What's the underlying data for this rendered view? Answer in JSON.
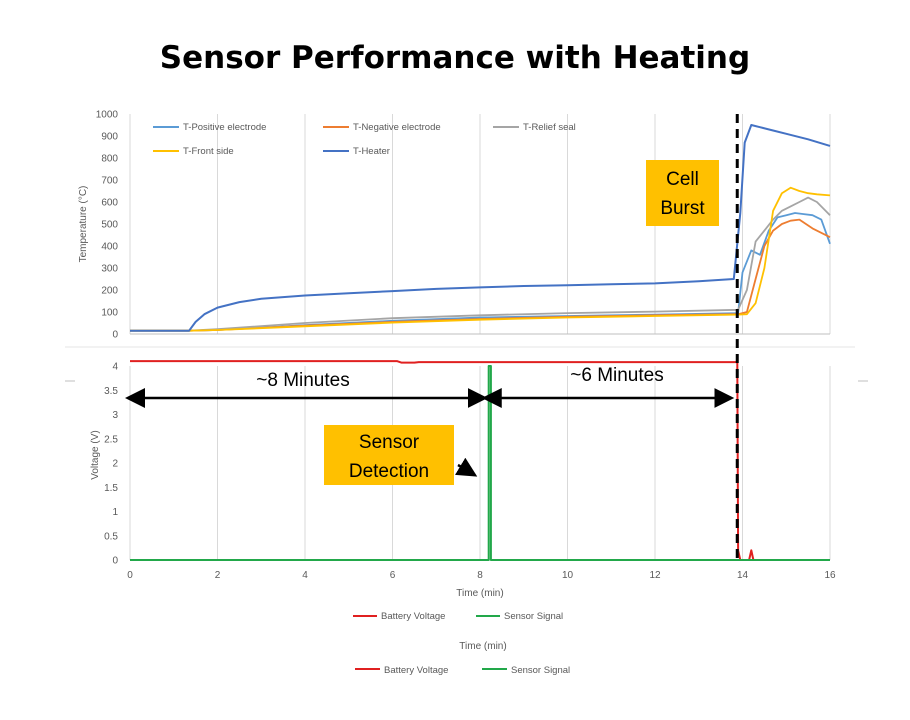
{
  "title": "Sensor Performance with Heating",
  "colors": {
    "t_positive": "#5B9BD5",
    "t_negative": "#ED7D31",
    "t_relief": "#A5A5A5",
    "t_front": "#FFC000",
    "t_heater": "#4472C4",
    "battery": "#E02020",
    "sensor": "#22A84A",
    "callout_fill": "#FFC000",
    "grid": "#D9D9D9"
  },
  "annotations": {
    "cell_burst_line1": "Cell",
    "cell_burst_line2": "Burst",
    "sensor_detection_line1": "Sensor",
    "sensor_detection_line2": "Detection",
    "interval_1": "~8 Minutes",
    "interval_2": "~6 Minutes"
  },
  "legend_bottom_outer": {
    "battery": "Battery Voltage",
    "sensor": "Sensor Signal"
  },
  "xlabel_outer": "Time (min)",
  "chart_data": [
    {
      "type": "line",
      "title": "",
      "xlabel": "",
      "ylabel": "Temperature (°C)",
      "xlim": [
        0,
        16
      ],
      "ylim": [
        0,
        1000
      ],
      "yticks": [
        0,
        100,
        200,
        300,
        400,
        500,
        600,
        700,
        800,
        900,
        1000
      ],
      "grid": "vertical",
      "legend_placement": "top-left",
      "series": [
        {
          "name": "T-Positive electrode",
          "color_key": "t_positive",
          "x": [
            0,
            1.35,
            2,
            4,
            6,
            8,
            10,
            12,
            13.9,
            14.0,
            14.2,
            14.4,
            14.6,
            14.8,
            15.0,
            15.2,
            15.4,
            15.6,
            15.8,
            16.0
          ],
          "y": [
            15,
            15,
            18,
            40,
            60,
            75,
            82,
            88,
            95,
            280,
            380,
            360,
            470,
            530,
            540,
            550,
            545,
            540,
            520,
            410
          ]
        },
        {
          "name": "T-Negative electrode",
          "color_key": "t_negative",
          "x": [
            0,
            1.35,
            2,
            4,
            6,
            8,
            10,
            12,
            13.9,
            14.1,
            14.3,
            14.5,
            14.7,
            14.9,
            15.1,
            15.3,
            15.6,
            16.0
          ],
          "y": [
            15,
            15,
            18,
            38,
            55,
            68,
            78,
            85,
            90,
            100,
            250,
            400,
            470,
            500,
            515,
            520,
            480,
            440
          ]
        },
        {
          "name": "T-Relief seal",
          "color_key": "t_relief",
          "x": [
            0,
            1.35,
            2,
            4,
            6,
            8,
            10,
            12,
            13.9,
            14.1,
            14.3,
            14.5,
            14.7,
            14.9,
            15.1,
            15.3,
            15.5,
            15.7,
            16.0
          ],
          "y": [
            15,
            15,
            22,
            50,
            72,
            85,
            95,
            102,
            110,
            200,
            420,
            470,
            520,
            560,
            580,
            600,
            620,
            600,
            540
          ]
        },
        {
          "name": "T-Front side",
          "color_key": "t_front",
          "x": [
            0,
            1.35,
            2,
            4,
            6,
            8,
            10,
            12,
            13.9,
            14.1,
            14.3,
            14.5,
            14.7,
            14.9,
            15.1,
            15.3,
            15.5,
            15.7,
            16.0
          ],
          "y": [
            15,
            15,
            18,
            35,
            52,
            65,
            75,
            82,
            88,
            90,
            140,
            300,
            560,
            640,
            665,
            650,
            640,
            635,
            630
          ]
        },
        {
          "name": "T-Heater",
          "color_key": "t_heater",
          "x": [
            0,
            1.35,
            1.5,
            1.7,
            2.0,
            2.5,
            3,
            4,
            5,
            6,
            7,
            8,
            9,
            10,
            11,
            12,
            13,
            13.8,
            13.95,
            14.05,
            14.2,
            14.4,
            14.7,
            15,
            15.5,
            16.0
          ],
          "y": [
            15,
            15,
            55,
            90,
            120,
            145,
            160,
            175,
            185,
            195,
            205,
            212,
            218,
            222,
            226,
            230,
            240,
            250,
            550,
            870,
            950,
            940,
            925,
            910,
            885,
            855
          ]
        }
      ]
    },
    {
      "type": "line",
      "title": "",
      "xlabel": "Time (min)",
      "ylabel": "Voltage (V)",
      "xlim": [
        0,
        16
      ],
      "ylim": [
        0,
        4
      ],
      "xticks": [
        0,
        2,
        4,
        6,
        8,
        10,
        12,
        14,
        16
      ],
      "yticks": [
        0,
        0.5,
        1,
        1.5,
        2,
        2.5,
        3,
        3.5,
        4
      ],
      "grid": "vertical",
      "legend_placement": "bottom",
      "series": [
        {
          "name": "Battery Voltage",
          "color_key": "battery",
          "x": [
            0,
            6.1,
            6.2,
            6.5,
            6.6,
            13.88,
            13.9,
            13.95,
            14.0,
            14.15,
            14.2,
            14.25,
            16.0
          ],
          "y": [
            4.1,
            4.1,
            4.07,
            4.07,
            4.08,
            4.08,
            0.2,
            0.0,
            0.0,
            0.0,
            0.2,
            0.0,
            0.0
          ]
        },
        {
          "name": "Sensor Signal",
          "color_key": "sensor",
          "x": [
            0,
            8.2,
            8.2,
            8.25,
            8.25,
            16.0
          ],
          "y": [
            0,
            0,
            4.0,
            4.0,
            0,
            0
          ]
        }
      ]
    }
  ]
}
